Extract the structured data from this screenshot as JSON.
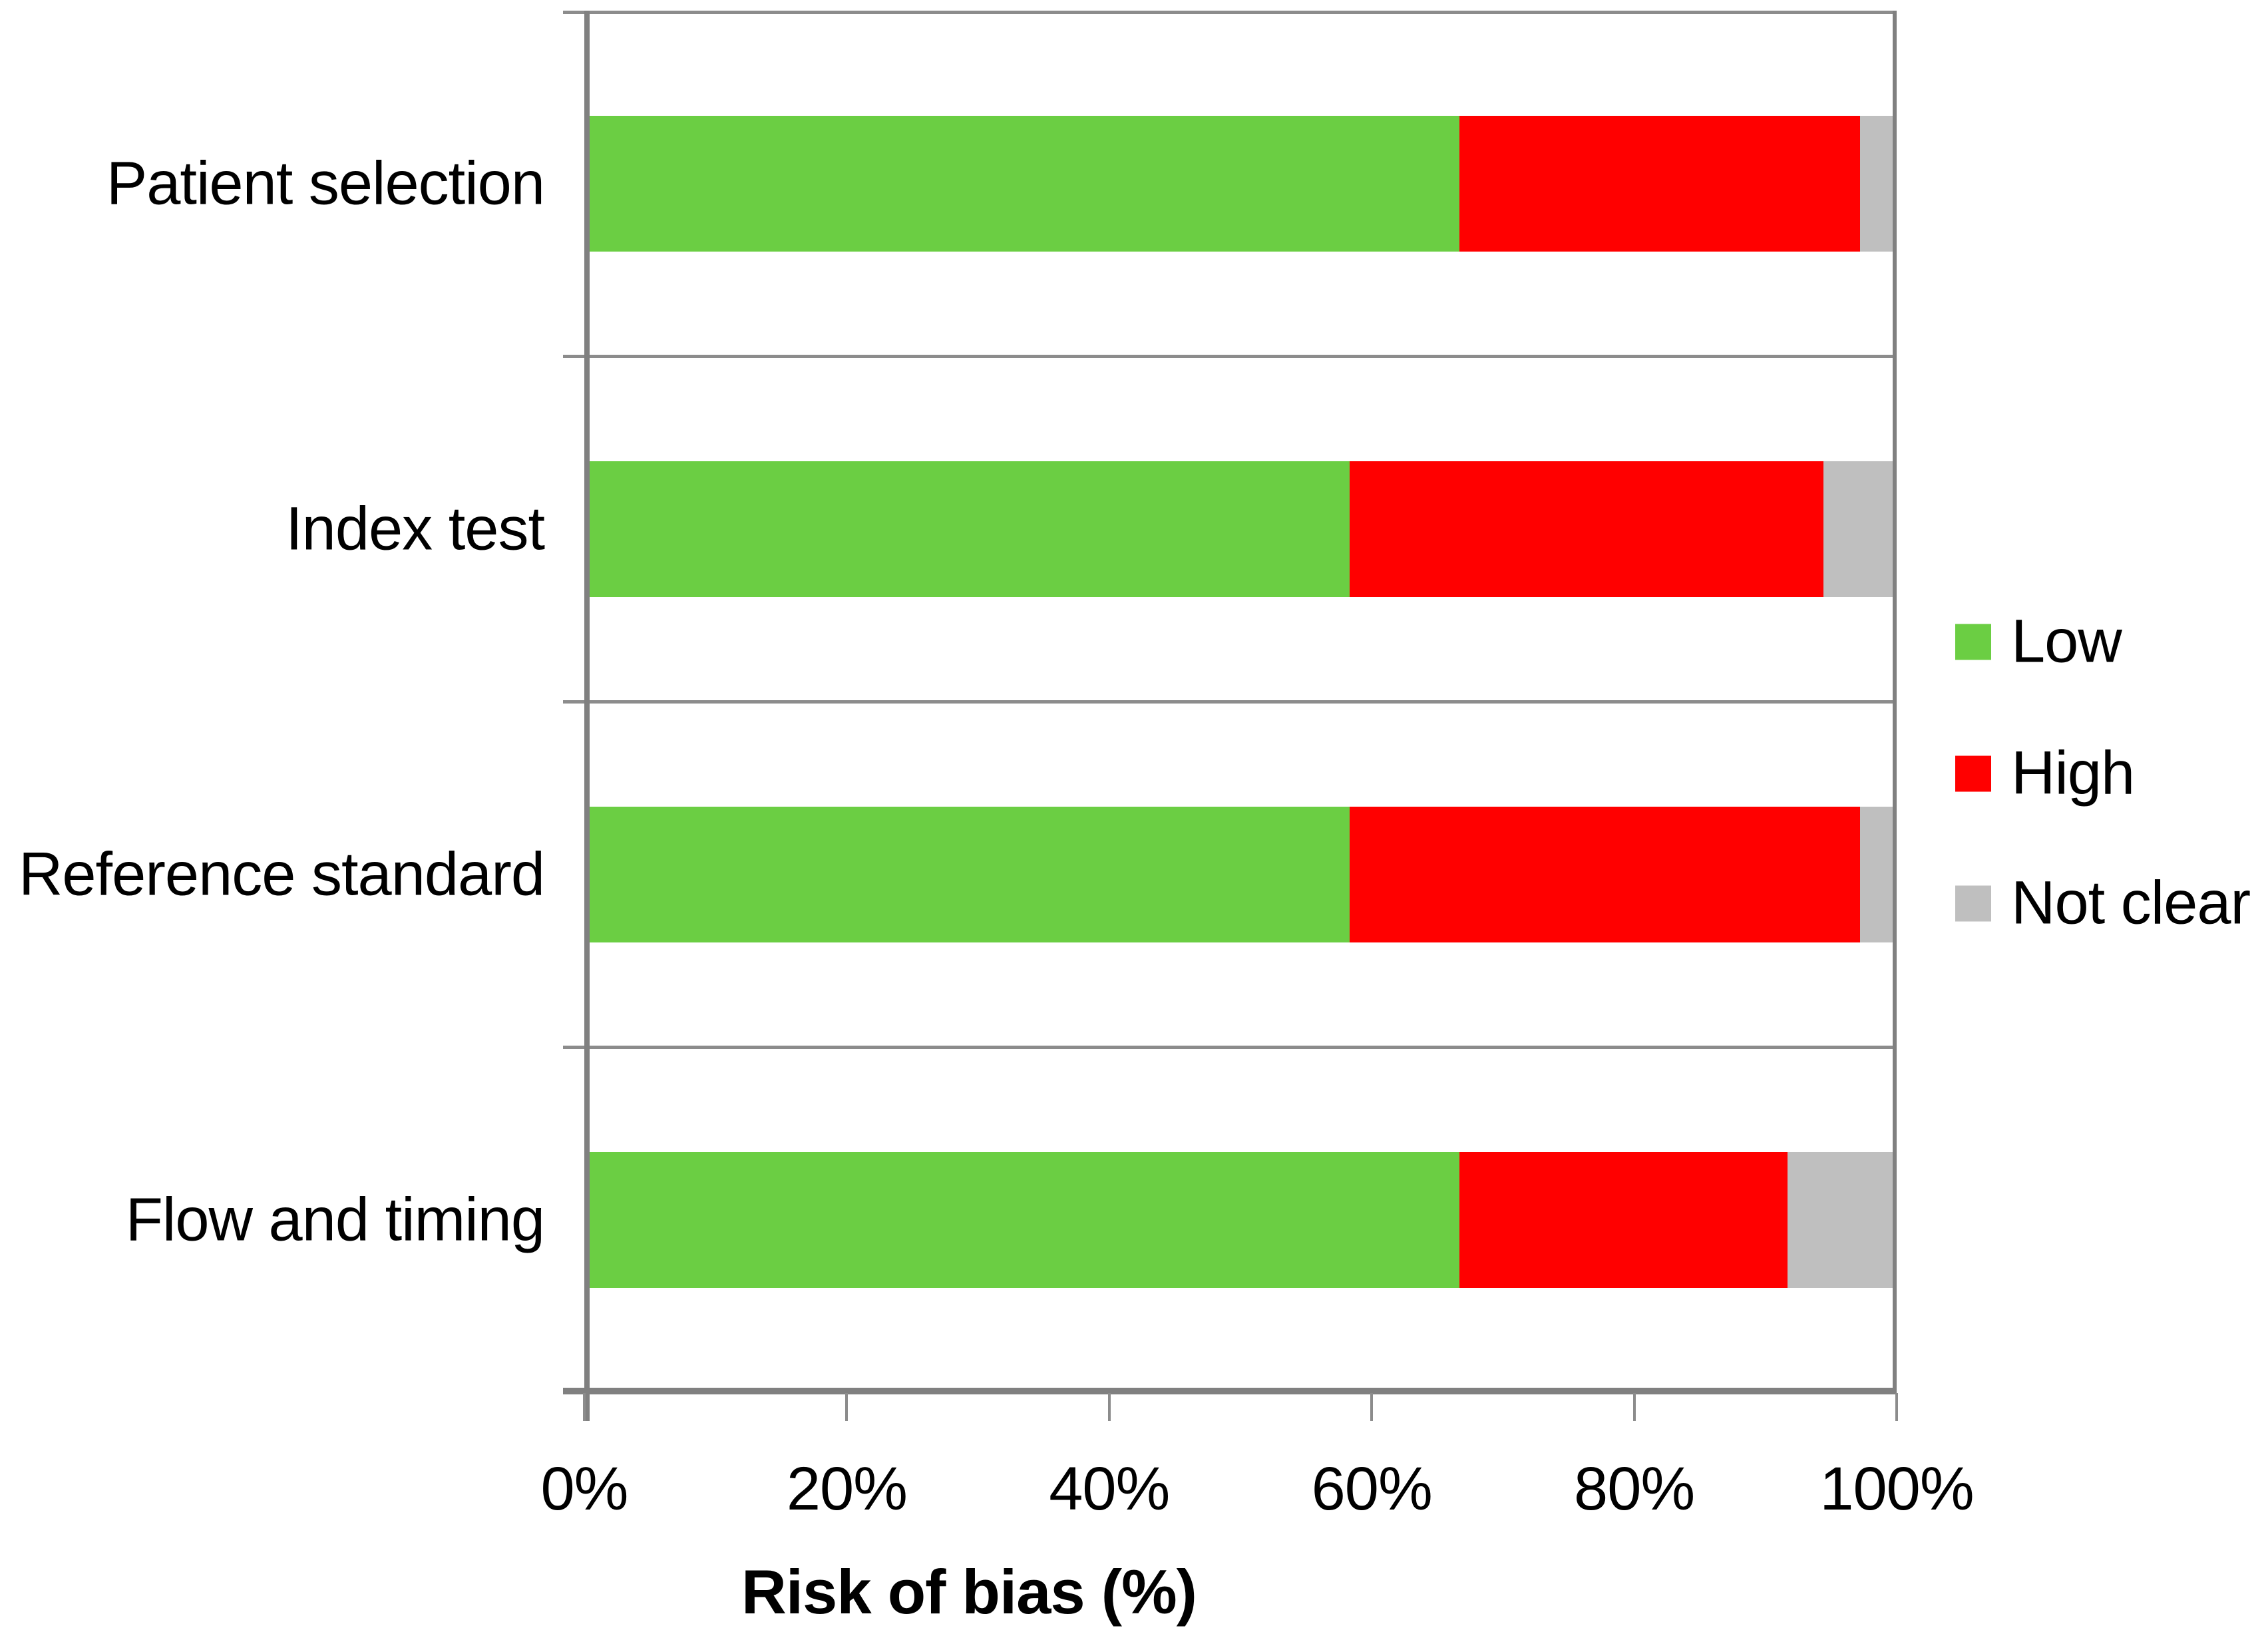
{
  "chart_data": {
    "type": "bar",
    "orientation": "horizontal",
    "stacked": true,
    "title": "",
    "xlabel": "Risk of bias (%)",
    "ylabel": "",
    "categories": [
      "Patient selection",
      "Index test",
      "Reference standard",
      "Flow and timing"
    ],
    "series": [
      {
        "name": "Low",
        "color": "#6BCE43",
        "values": [
          66.7,
          58.3,
          58.3,
          66.7
        ]
      },
      {
        "name": "High",
        "color": "#FF0000",
        "values": [
          30.5,
          36.1,
          38.9,
          25.0
        ]
      },
      {
        "name": "Not clear",
        "color": "#BFBFBF",
        "values": [
          2.8,
          5.6,
          2.8,
          8.3
        ]
      }
    ],
    "x_ticks": [
      "0%",
      "20%",
      "40%",
      "60%",
      "80%",
      "100%"
    ],
    "xlim": [
      0,
      100
    ],
    "grid": "horizontal category separators only",
    "legend_position": "right"
  },
  "colors": {
    "axis_line": "#808080",
    "separator_line": "#8C8C8C",
    "background": "#FFFFFF",
    "text": "#000000"
  }
}
